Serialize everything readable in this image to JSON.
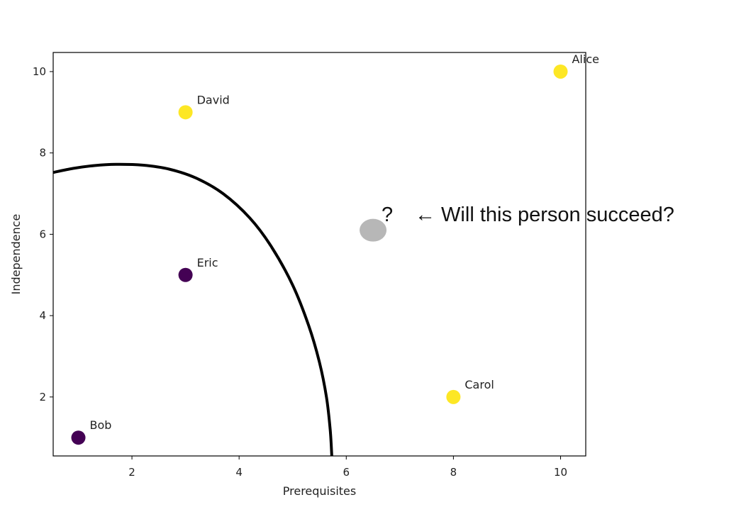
{
  "chart_data": {
    "type": "scatter",
    "title": "",
    "xlabel": "Prerequisites",
    "ylabel": "Independence",
    "xlim": [
      0.53,
      10.47
    ],
    "ylim": [
      0.55,
      10.47
    ],
    "xticks": [
      2,
      4,
      6,
      8,
      10
    ],
    "yticks": [
      2,
      4,
      6,
      8,
      10
    ],
    "grid": false,
    "legend": "none",
    "points": [
      {
        "label": "Alice",
        "x": 10,
        "y": 10,
        "color": "#fde725"
      },
      {
        "label": "David",
        "x": 3,
        "y": 9,
        "color": "#fde725"
      },
      {
        "label": "Eric",
        "x": 3,
        "y": 5,
        "color": "#440154"
      },
      {
        "label": "Carol",
        "x": 8,
        "y": 2,
        "color": "#fde725"
      },
      {
        "label": "Bob",
        "x": 1,
        "y": 1,
        "color": "#440154"
      }
    ],
    "query_point": {
      "x": 6.5,
      "y": 6.1,
      "color": "#b7b7b7"
    },
    "annotation": {
      "mark": "?",
      "text": "← Will this person succeed?"
    },
    "decision_boundary": {
      "color": "#000000",
      "points": [
        [
          0.53,
          7.52
        ],
        [
          0.9,
          7.62
        ],
        [
          1.3,
          7.69
        ],
        [
          1.7,
          7.72
        ],
        [
          2.2,
          7.7
        ],
        [
          2.7,
          7.6
        ],
        [
          3.2,
          7.38
        ],
        [
          3.7,
          7.0
        ],
        [
          4.2,
          6.4
        ],
        [
          4.6,
          5.7
        ],
        [
          5.0,
          4.75
        ],
        [
          5.3,
          3.75
        ],
        [
          5.5,
          2.85
        ],
        [
          5.63,
          2.0
        ],
        [
          5.7,
          1.2
        ],
        [
          5.73,
          0.55
        ]
      ]
    }
  }
}
